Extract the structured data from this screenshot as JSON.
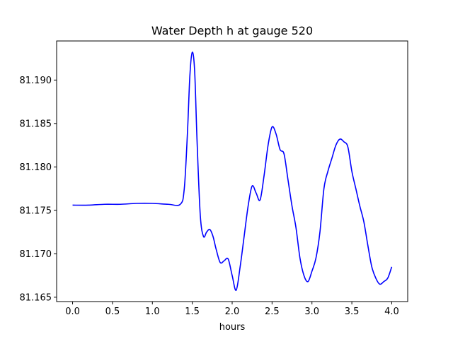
{
  "chart_data": {
    "type": "line",
    "title": "Water Depth h at gauge 520",
    "xlabel": "hours",
    "ylabel": "",
    "xlim": [
      -0.2,
      4.2
    ],
    "ylim": [
      81.1645,
      81.1945
    ],
    "xticks": [
      0.0,
      0.5,
      1.0,
      1.5,
      2.0,
      2.5,
      3.0,
      3.5,
      4.0
    ],
    "xtick_labels": [
      "0.0",
      "0.5",
      "1.0",
      "1.5",
      "2.0",
      "2.5",
      "3.0",
      "3.5",
      "4.0"
    ],
    "yticks": [
      81.165,
      81.17,
      81.175,
      81.18,
      81.185,
      81.19
    ],
    "ytick_labels": [
      "81.165",
      "81.170",
      "81.175",
      "81.180",
      "81.185",
      "81.190"
    ],
    "grid": false,
    "legend": "none",
    "series": [
      {
        "color": "#0000ff",
        "x": [
          0.0,
          0.2,
          0.4,
          0.6,
          0.8,
          1.0,
          1.2,
          1.35,
          1.4,
          1.44,
          1.47,
          1.5,
          1.53,
          1.56,
          1.6,
          1.64,
          1.68,
          1.72,
          1.76,
          1.8,
          1.85,
          1.9,
          1.95,
          2.0,
          2.05,
          2.1,
          2.15,
          2.2,
          2.25,
          2.3,
          2.35,
          2.4,
          2.45,
          2.5,
          2.55,
          2.6,
          2.65,
          2.7,
          2.75,
          2.8,
          2.85,
          2.9,
          2.95,
          3.0,
          3.05,
          3.1,
          3.15,
          3.2,
          3.25,
          3.3,
          3.35,
          3.4,
          3.45,
          3.5,
          3.55,
          3.6,
          3.65,
          3.7,
          3.75,
          3.8,
          3.85,
          3.9,
          3.95,
          4.0
        ],
        "y": [
          81.1756,
          81.1756,
          81.1757,
          81.1757,
          81.1758,
          81.1758,
          81.1757,
          81.1757,
          81.1775,
          81.184,
          81.1905,
          81.1932,
          81.191,
          81.183,
          81.1745,
          81.172,
          81.1725,
          81.1728,
          81.172,
          81.1705,
          81.169,
          81.1692,
          81.1694,
          81.1675,
          81.1658,
          81.1685,
          81.172,
          81.1755,
          81.1778,
          81.177,
          81.1762,
          81.179,
          81.1825,
          81.1846,
          81.1838,
          81.182,
          81.1815,
          81.1785,
          81.1755,
          81.173,
          81.1695,
          81.1675,
          81.1668,
          81.168,
          81.1695,
          81.1725,
          81.1775,
          81.1795,
          81.181,
          81.1825,
          81.1832,
          81.1829,
          81.1823,
          81.1795,
          81.1775,
          81.1755,
          81.1737,
          81.171,
          81.1685,
          81.1672,
          81.1665,
          81.1668,
          81.1672,
          81.1685
        ]
      }
    ]
  }
}
